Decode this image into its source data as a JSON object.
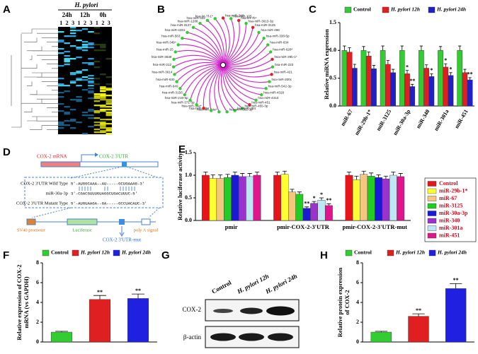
{
  "heatmap": {
    "panel": "A",
    "header": "H. pylori",
    "groups": [
      "24h",
      "12h",
      "0h"
    ],
    "columns": [
      1,
      2,
      3,
      1,
      2,
      3,
      1,
      2,
      3
    ]
  },
  "network": {
    "panel": "B",
    "nodes": [
      {
        "label": "hsa-miR-340",
        "color": "#e02020"
      },
      {
        "label": "hsa-miR-105",
        "color": "#33cc33"
      },
      {
        "label": "hsa-let-7b*",
        "color": "#e02020"
      },
      {
        "label": "hsa-miR-3613-3p",
        "color": "#33cc33"
      },
      {
        "label": "hsa-miR-3125",
        "color": "#e02020"
      },
      {
        "label": "hsa-miR-498",
        "color": "#33cc33"
      },
      {
        "label": "hsa-miR-338-5p",
        "color": "#33cc33"
      },
      {
        "label": "hsa-miR-634",
        "color": "#33cc33"
      },
      {
        "label": "hsa-miR-628*",
        "color": "#33cc33"
      },
      {
        "label": "hsa-miR-29b-1*",
        "color": "#e02020"
      },
      {
        "label": "hsa-miR-223",
        "color": "#33cc33"
      },
      {
        "label": "hsa-miR-421",
        "color": "#e02020"
      },
      {
        "label": "hsa-miR-200c",
        "color": "#33cc33"
      },
      {
        "label": "hsa-miR-542-3p",
        "color": "#33cc33"
      },
      {
        "label": "hsa-miR-4328",
        "color": "#33cc33"
      },
      {
        "label": "hsa-miR-4310",
        "color": "#33cc33"
      },
      {
        "label": "hsa-miR-451",
        "color": "#e02020"
      },
      {
        "label": "hsa-miR-455-3p",
        "color": "#33cc33"
      },
      {
        "label": "hsa-miR-484",
        "color": "#33cc33"
      },
      {
        "label": "hsa-miR-362-3p",
        "color": "#33cc33"
      },
      {
        "label": "hsa-miR-34a*",
        "color": "#33cc33"
      },
      {
        "label": "hsa-miR-335*",
        "color": "#33cc33"
      },
      {
        "label": "hsa-miR-30a*",
        "color": "#e02020"
      },
      {
        "label": "hsa-miR-371-5p",
        "color": "#33cc33"
      },
      {
        "label": "hsa-miR-219-5p",
        "color": "#33cc33"
      },
      {
        "label": "hsa-miR-3156",
        "color": "#33cc33"
      },
      {
        "label": "hsa-miR-640",
        "color": "#33cc33"
      },
      {
        "label": "hsa-miR-630",
        "color": "#33cc33"
      },
      {
        "label": "hsa-miR-3614",
        "color": "#33cc33"
      },
      {
        "label": "hsa-miR-212",
        "color": "#33cc33"
      },
      {
        "label": "hsa-miR-3648",
        "color": "#33cc33"
      },
      {
        "label": "hsa-miR-25",
        "color": "#33cc33"
      },
      {
        "label": "hsa-miR-34b*",
        "color": "#33cc33"
      },
      {
        "label": "hsa-miR-563",
        "color": "#33cc33"
      },
      {
        "label": "hsa-miR-4281",
        "color": "#33cc33"
      },
      {
        "label": "hsa-miR-3127",
        "color": "#33cc33"
      },
      {
        "label": "hsa-miR-1288",
        "color": "#33cc33"
      },
      {
        "label": "hsa-miR-322",
        "color": "#33cc33"
      },
      {
        "label": "hsa-let-7f-1*",
        "color": "#33cc33"
      }
    ]
  },
  "chart_data": [
    {
      "type": "bar",
      "panel": "C",
      "y_label": "Relative miRNA expression",
      "categories": [
        "miR-67",
        "miR-29b-1*",
        "miR-3125",
        "miR-30a-3p",
        "miR-340",
        "miR-301a",
        "miR-451"
      ],
      "series": [
        {
          "name": "Control",
          "color": "#33cc33",
          "values": [
            1.0,
            1.0,
            1.0,
            1.0,
            1.0,
            1.0,
            1.0
          ],
          "errors": [
            0.08,
            0.07,
            0.08,
            0.08,
            0.08,
            0.07,
            0.08
          ],
          "significance": [
            null,
            null,
            null,
            null,
            null,
            null,
            null
          ]
        },
        {
          "name": "H. pylori 12h",
          "color": "#e02020",
          "values": [
            0.97,
            0.9,
            0.75,
            0.58,
            0.68,
            0.7,
            0.6
          ],
          "errors": [
            0.08,
            0.07,
            0.07,
            0.06,
            0.06,
            0.06,
            0.06
          ],
          "significance": [
            null,
            null,
            null,
            "*",
            null,
            "*",
            null
          ]
        },
        {
          "name": "H. pylori 24h",
          "color": "#2020c8",
          "values": [
            0.68,
            0.67,
            0.6,
            0.35,
            0.53,
            0.55,
            0.47
          ],
          "errors": [
            0.07,
            0.06,
            0.06,
            0.04,
            0.05,
            0.05,
            0.04
          ],
          "significance": [
            null,
            null,
            null,
            "**",
            "*",
            "*",
            "**"
          ]
        }
      ],
      "ylim": [
        0,
        1.5
      ],
      "yticks": [
        {
          "value": 0,
          "label": "0.0"
        },
        {
          "value": 0.5,
          "label": "0.5"
        },
        {
          "value": 1,
          "label": "1.0"
        },
        {
          "value": 1.5,
          "label": "1.5"
        }
      ]
    },
    {
      "type": "bar",
      "panel": "E",
      "y_label": "Relative luciferase activity",
      "categories": [
        "pmir",
        "pmir-COX-2-3'UTR",
        "pmir-COX-2-3'UTR-mut"
      ],
      "series": [
        {
          "name": "Control",
          "color": "#e8141b",
          "values": [
            1.0,
            1.0,
            1.0
          ],
          "errors": [
            0.07,
            0.07,
            0.07
          ],
          "significance": [
            null,
            null,
            null
          ]
        },
        {
          "name": "miR-29b-1*",
          "color": "#ffff33",
          "values": [
            0.93,
            1.02,
            0.9
          ],
          "errors": [
            0.08,
            0.07,
            0.08
          ],
          "significance": [
            null,
            null,
            null
          ]
        },
        {
          "name": "miR-67",
          "color": "#f5c77e",
          "values": [
            0.93,
            0.63,
            1.02
          ],
          "errors": [
            0.08,
            0.06,
            0.07
          ],
          "significance": [
            null,
            null,
            null
          ]
        },
        {
          "name": "miR-3125",
          "color": "#22cc22",
          "values": [
            0.95,
            0.58,
            0.98
          ],
          "errors": [
            0.07,
            0.05,
            0.07
          ],
          "significance": [
            null,
            null,
            null
          ]
        },
        {
          "name": "miR-30a-3p",
          "color": "#1a1ad6",
          "values": [
            1.0,
            0.27,
            0.95
          ],
          "errors": [
            0.07,
            0.03,
            0.06
          ],
          "significance": [
            null,
            "**",
            null
          ]
        },
        {
          "name": "miR-340",
          "color": "#9933cc",
          "values": [
            0.97,
            0.38,
            0.92
          ],
          "errors": [
            0.07,
            0.04,
            0.06
          ],
          "significance": [
            null,
            "*",
            null
          ]
        },
        {
          "name": "miR-301a",
          "color": "#bfe6f5",
          "values": [
            0.97,
            0.45,
            1.0
          ],
          "errors": [
            0.07,
            0.05,
            0.07
          ],
          "significance": [
            null,
            "*",
            null
          ]
        },
        {
          "name": "miR-451",
          "color": "#e0148c",
          "values": [
            1.0,
            0.33,
            0.97
          ],
          "errors": [
            0.07,
            0.04,
            0.07
          ],
          "significance": [
            null,
            "**",
            null
          ]
        }
      ],
      "ylim": [
        0,
        1.5
      ],
      "yticks": [
        {
          "value": 0,
          "label": "0.0"
        },
        {
          "value": 0.5,
          "label": "0.5"
        },
        {
          "value": 1,
          "label": "1.0"
        },
        {
          "value": 1.5,
          "label": "1.5"
        }
      ]
    },
    {
      "type": "bar",
      "panel": "F",
      "y_label": [
        "Relative expression of COX-2",
        "mRNA (vs GAPDH)"
      ],
      "categories": [
        "Control",
        "H. pylori 12h",
        "H. pylori 24h"
      ],
      "series": [
        {
          "name": "Control",
          "color": "#33cc33"
        },
        {
          "name": "H. pylori 12h",
          "color": "#e02020"
        },
        {
          "name": "H. pylori 24h",
          "color": "#2020e0"
        }
      ],
      "values": [
        1.0,
        4.3,
        4.4
      ],
      "errors": [
        0.08,
        0.4,
        0.45
      ],
      "significance": [
        null,
        "**",
        "**"
      ],
      "ylim": [
        0,
        8
      ],
      "yticks": [
        0,
        2,
        4,
        6,
        8
      ]
    },
    {
      "type": "bar",
      "panel": "H",
      "y_label": [
        "Relative  protein expression",
        "of COX-2"
      ],
      "categories": [
        "Control",
        "H. pylori 12h",
        "H. pylori 24h"
      ],
      "series": [
        {
          "name": "Control",
          "color": "#33cc33"
        },
        {
          "name": "H. pylori 12h",
          "color": "#e02020"
        },
        {
          "name": "H. pylori 24h",
          "color": "#2020e0"
        }
      ],
      "values": [
        1.0,
        2.6,
        5.4
      ],
      "errors": [
        0.08,
        0.25,
        0.5
      ],
      "significance": [
        null,
        "**",
        "**"
      ],
      "ylim": [
        0,
        8
      ],
      "yticks": [
        0,
        2,
        4,
        6,
        8
      ]
    }
  ],
  "diagram": {
    "panel": "D",
    "mrna": "COX-2 mRNA",
    "utr": "COX-2 3'UTR",
    "wild_label": "COX-2 3'UTR Wild Type",
    "wild_seq": "5'-AUGGCAAA--AU-----GCUGAAAG-3'",
    "mir_label": "miR-30a-3p",
    "mir_seq": "3'-CGACGUUUGUAGGCUGACUUUC-5'",
    "mut_label": "COX-2 3'UTR Mutant Type",
    "mut_seq": "5'-AUGUAAGA--GA-----GCCUACAUC-3'",
    "promoter": "SV40 promoter",
    "luciferase": "Luciferase",
    "polya": "poly A signal",
    "mut": "COX-2 3'UTR-mut"
  },
  "blot": {
    "panel": "G",
    "lanes": [
      "Control",
      "H. pylori 12h",
      "H. pylori 24h"
    ],
    "rows": [
      "COX-2",
      "β-actin"
    ]
  }
}
